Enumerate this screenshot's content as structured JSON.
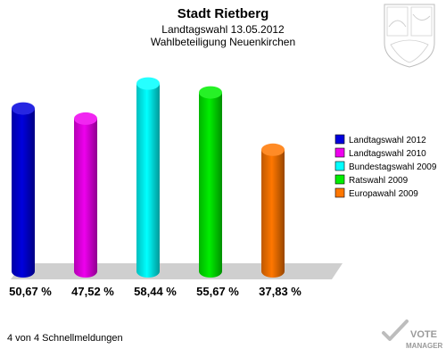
{
  "header": {
    "title": "Stadt Rietberg",
    "subtitle1": "Landtagswahl 13.05.2012",
    "subtitle2": "Wahlbeteiligung Neuenkirchen"
  },
  "footer": {
    "status": "4 von 4 Schnellmeldungen",
    "logo_line1": "VOTE",
    "logo_line2": "MANAGER"
  },
  "crest": {
    "icon": "coat-of-arms-icon"
  },
  "chart_data": {
    "type": "bar",
    "categories": [
      "Landtagswahl 2012",
      "Landtagswahl 2010",
      "Bundestagswahl 2009",
      "Ratswahl 2009",
      "Europawahl 2009"
    ],
    "values": [
      50.67,
      47.52,
      58.44,
      55.67,
      37.83
    ],
    "value_labels": [
      "50,67 %",
      "47,52 %",
      "58,44 %",
      "55,67 %",
      "37,83 %"
    ],
    "colors": [
      "#0000dd",
      "#ee00ee",
      "#00ffff",
      "#00ee00",
      "#ff7700"
    ],
    "ylim": [
      0,
      65
    ],
    "legend_position": "right",
    "grid": false
  }
}
